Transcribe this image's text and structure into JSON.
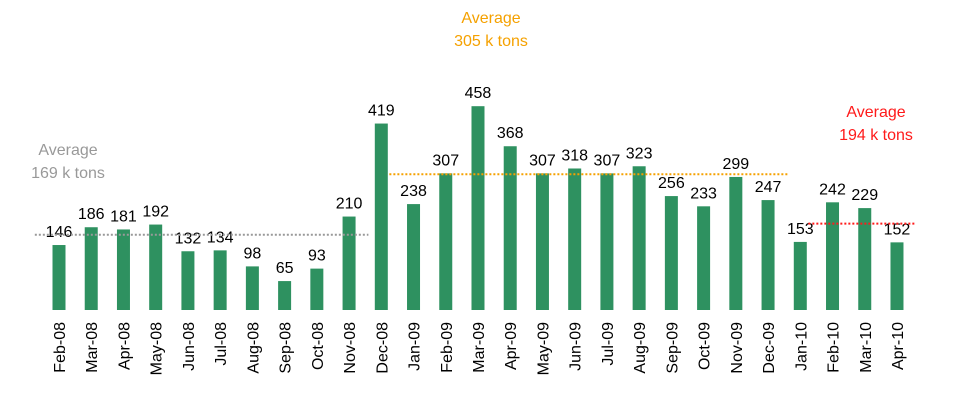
{
  "chart_data": {
    "type": "bar",
    "color": "#2e9160",
    "categories": [
      "Feb-08",
      "Mar-08",
      "Apr-08",
      "May-08",
      "Jun-08",
      "Jul-08",
      "Aug-08",
      "Sep-08",
      "Oct-08",
      "Nov-08",
      "Dec-08",
      "Jan-09",
      "Feb-09",
      "Mar-09",
      "Apr-09",
      "May-09",
      "Jun-09",
      "Jul-09",
      "Aug-09",
      "Sep-09",
      "Oct-09",
      "Nov-09",
      "Dec-09",
      "Jan-10",
      "Feb-10",
      "Mar-10",
      "Apr-10"
    ],
    "values": [
      146,
      186,
      181,
      192,
      132,
      134,
      98,
      65,
      93,
      210,
      419,
      238,
      307,
      458,
      368,
      307,
      318,
      307,
      323,
      256,
      233,
      299,
      247,
      153,
      242,
      229,
      152
    ],
    "averages": [
      {
        "value": 169,
        "label": [
          "Average",
          "169 k tons"
        ],
        "color": "#999999",
        "start": "Feb-08",
        "end": "Nov-08"
      },
      {
        "value": 305,
        "label": [
          "Average",
          "305 k tons"
        ],
        "color": "#f5a100",
        "start": "Jan-09",
        "end": "Dec-09"
      },
      {
        "value": 194,
        "label": [
          "Average",
          "194 k tons"
        ],
        "color": "#ff1a1a",
        "start": "Feb-10",
        "end": "Apr-10"
      }
    ]
  }
}
